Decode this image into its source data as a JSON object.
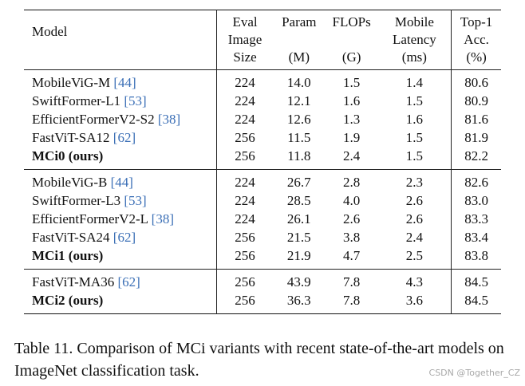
{
  "table": {
    "headers": {
      "model": "Model",
      "size": [
        "Eval",
        "Image",
        "Size"
      ],
      "param": [
        "Param",
        "(M)"
      ],
      "flops": [
        "FLOPs",
        "(G)"
      ],
      "latency": [
        "Mobile",
        "Latency",
        "(ms)"
      ],
      "top1": [
        "Top-1",
        "Acc.",
        "(%)"
      ]
    },
    "groups": [
      {
        "rows": [
          {
            "model": "MobileViG-M",
            "cite": "[44]",
            "size": "224",
            "param": "14.0",
            "flops": "1.5",
            "latency": "1.4",
            "top1": "80.6",
            "bold": false
          },
          {
            "model": "SwiftFormer-L1",
            "cite": "[53]",
            "size": "224",
            "param": "12.1",
            "flops": "1.6",
            "latency": "1.5",
            "top1": "80.9",
            "bold": false
          },
          {
            "model": "EfficientFormerV2-S2",
            "cite": "[38]",
            "size": "224",
            "param": "12.6",
            "flops": "1.3",
            "latency": "1.6",
            "top1": "81.6",
            "bold": false
          },
          {
            "model": "FastViT-SA12",
            "cite": "[62]",
            "size": "256",
            "param": "11.5",
            "flops": "1.9",
            "latency": "1.5",
            "top1": "81.9",
            "bold": false
          },
          {
            "model": "MCi0 (ours)",
            "cite": "",
            "size": "256",
            "param": "11.8",
            "flops": "2.4",
            "latency": "1.5",
            "top1": "82.2",
            "bold": true
          }
        ]
      },
      {
        "rows": [
          {
            "model": "MobileViG-B",
            "cite": "[44]",
            "size": "224",
            "param": "26.7",
            "flops": "2.8",
            "latency": "2.3",
            "top1": "82.6",
            "bold": false
          },
          {
            "model": "SwiftFormer-L3",
            "cite": "[53]",
            "size": "224",
            "param": "28.5",
            "flops": "4.0",
            "latency": "2.6",
            "top1": "83.0",
            "bold": false
          },
          {
            "model": "EfficientFormerV2-L",
            "cite": "[38]",
            "size": "224",
            "param": "26.1",
            "flops": "2.6",
            "latency": "2.6",
            "top1": "83.3",
            "bold": false
          },
          {
            "model": "FastViT-SA24",
            "cite": "[62]",
            "size": "256",
            "param": "21.5",
            "flops": "3.8",
            "latency": "2.4",
            "top1": "83.4",
            "bold": false
          },
          {
            "model": "MCi1 (ours)",
            "cite": "",
            "size": "256",
            "param": "21.9",
            "flops": "4.7",
            "latency": "2.5",
            "top1": "83.8",
            "bold": true
          }
        ]
      },
      {
        "rows": [
          {
            "model": "FastViT-MA36",
            "cite": "[62]",
            "size": "256",
            "param": "43.9",
            "flops": "7.8",
            "latency": "4.3",
            "top1": "84.5",
            "bold": false
          },
          {
            "model": "MCi2 (ours)",
            "cite": "",
            "size": "256",
            "param": "36.3",
            "flops": "7.8",
            "latency": "3.6",
            "top1": "84.5",
            "bold": true
          }
        ]
      }
    ]
  },
  "caption": "Table 11. Comparison of MCi variants with recent state-of-the-art models on ImageNet classification task.",
  "watermark": "CSDN @Together_CZ",
  "colors": {
    "citation": "#3b6fb6",
    "text": "#111111",
    "watermark": "#a8a8a8"
  }
}
